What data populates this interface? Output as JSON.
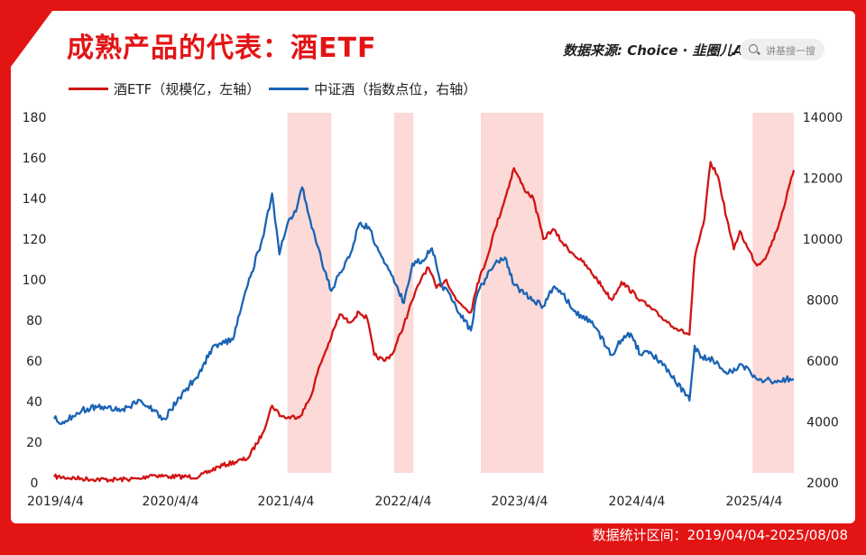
{
  "title": "成熟产品的代表：酒ETF",
  "source_label": "数据来源: Choice · 韭圈儿App",
  "search_placeholder": "讲基搜一搜",
  "footer": "数据统计区间：2019/04/04-2025/08/08",
  "colors": {
    "red": "#d11414",
    "blue": "#1a63b5",
    "shade": "#fbdad7"
  },
  "chart_data": {
    "type": "line",
    "x_ticks": [
      "2019/4/4",
      "2020/4/4",
      "2021/4/4",
      "2022/4/4",
      "2023/4/4",
      "2024/4/4",
      "2025/4/4"
    ],
    "y_left_ticks": [
      "0",
      "20",
      "40",
      "60",
      "80",
      "100",
      "120",
      "140",
      "160",
      "180"
    ],
    "y_right_ticks": [
      "2000",
      "4000",
      "6000",
      "8000",
      "10000",
      "12000",
      "14000"
    ],
    "ylim_left": [
      0,
      180
    ],
    "ylim_right": [
      2000,
      14000
    ],
    "shaded_periods": [
      [
        "2021-04-04",
        "2021-08-20"
      ],
      [
        "2022-03-04",
        "2022-05-04"
      ],
      [
        "2022-12-01",
        "2023-06-15"
      ],
      [
        "2025-04-01",
        "2025-08-08"
      ]
    ],
    "series": [
      {
        "name": "酒ETF（规模亿，左轴）",
        "axis": "left",
        "points": [
          [
            "2019-04-04",
            3
          ],
          [
            "2019-07-01",
            2
          ],
          [
            "2019-10-01",
            1.5
          ],
          [
            "2020-01-01",
            2
          ],
          [
            "2020-02-01",
            4
          ],
          [
            "2020-04-01",
            3
          ],
          [
            "2020-07-01",
            3
          ],
          [
            "2020-09-01",
            8
          ],
          [
            "2020-12-01",
            12
          ],
          [
            "2021-01-15",
            24
          ],
          [
            "2021-02-15",
            38
          ],
          [
            "2021-03-15",
            33
          ],
          [
            "2021-04-04",
            32
          ],
          [
            "2021-05-15",
            33
          ],
          [
            "2021-06-15",
            42
          ],
          [
            "2021-07-15",
            58
          ],
          [
            "2021-08-20",
            72
          ],
          [
            "2021-09-15",
            83
          ],
          [
            "2021-10-15",
            79
          ],
          [
            "2021-11-15",
            84
          ],
          [
            "2021-12-10",
            81
          ],
          [
            "2022-01-01",
            63
          ],
          [
            "2022-02-01",
            60
          ],
          [
            "2022-03-01",
            64
          ],
          [
            "2022-04-04",
            78
          ],
          [
            "2022-05-01",
            90
          ],
          [
            "2022-06-01",
            102
          ],
          [
            "2022-06-20",
            106
          ],
          [
            "2022-07-15",
            96
          ],
          [
            "2022-08-15",
            100
          ],
          [
            "2022-09-15",
            90
          ],
          [
            "2022-10-31",
            84
          ],
          [
            "2022-11-20",
            98
          ],
          [
            "2022-12-15",
            108
          ],
          [
            "2023-01-15",
            125
          ],
          [
            "2023-02-15",
            140
          ],
          [
            "2023-03-15",
            155
          ],
          [
            "2023-04-15",
            145
          ],
          [
            "2023-05-15",
            140
          ],
          [
            "2023-06-15",
            120
          ],
          [
            "2023-07-15",
            125
          ],
          [
            "2023-08-15",
            118
          ],
          [
            "2023-09-15",
            113
          ],
          [
            "2023-10-15",
            109
          ],
          [
            "2023-12-01",
            100
          ],
          [
            "2024-01-15",
            90
          ],
          [
            "2024-02-15",
            99
          ],
          [
            "2024-04-15",
            90
          ],
          [
            "2024-06-15",
            82
          ],
          [
            "2024-08-15",
            75
          ],
          [
            "2024-09-15",
            73
          ],
          [
            "2024-10-01",
            110
          ],
          [
            "2024-11-01",
            130
          ],
          [
            "2024-11-20",
            158
          ],
          [
            "2024-12-15",
            150
          ],
          [
            "2025-01-10",
            130
          ],
          [
            "2025-02-01",
            115
          ],
          [
            "2025-02-20",
            124
          ],
          [
            "2025-03-15",
            116
          ],
          [
            "2025-04-15",
            107
          ],
          [
            "2025-05-15",
            112
          ],
          [
            "2025-06-15",
            124
          ],
          [
            "2025-07-15",
            140
          ],
          [
            "2025-08-08",
            154
          ]
        ]
      },
      {
        "name": "中证酒（指数点位，右轴）",
        "axis": "right",
        "points": [
          [
            "2019-04-04",
            4100
          ],
          [
            "2019-05-01",
            4000
          ],
          [
            "2019-06-01",
            4200
          ],
          [
            "2019-07-01",
            4400
          ],
          [
            "2019-09-01",
            4500
          ],
          [
            "2019-11-01",
            4400
          ],
          [
            "2020-01-01",
            4700
          ],
          [
            "2020-03-15",
            4100
          ],
          [
            "2020-05-01",
            4800
          ],
          [
            "2020-07-01",
            5600
          ],
          [
            "2020-08-15",
            6500
          ],
          [
            "2020-10-15",
            6700
          ],
          [
            "2020-12-01",
            8500
          ],
          [
            "2021-01-15",
            10000
          ],
          [
            "2021-02-15",
            11500
          ],
          [
            "2021-03-10",
            9500
          ],
          [
            "2021-04-04",
            10500
          ],
          [
            "2021-05-01",
            10900
          ],
          [
            "2021-05-20",
            11700
          ],
          [
            "2021-06-15",
            10600
          ],
          [
            "2021-07-20",
            9300
          ],
          [
            "2021-08-20",
            8300
          ],
          [
            "2021-09-15",
            8900
          ],
          [
            "2021-10-15",
            9400
          ],
          [
            "2021-11-15",
            10500
          ],
          [
            "2021-12-15",
            10400
          ],
          [
            "2022-01-15",
            9600
          ],
          [
            "2022-02-15",
            9000
          ],
          [
            "2022-03-10",
            8500
          ],
          [
            "2022-04-04",
            7900
          ],
          [
            "2022-05-01",
            9200
          ],
          [
            "2022-06-01",
            9300
          ],
          [
            "2022-07-01",
            9700
          ],
          [
            "2022-08-01",
            8500
          ],
          [
            "2022-09-01",
            8000
          ],
          [
            "2022-10-31",
            7000
          ],
          [
            "2022-11-20",
            8200
          ],
          [
            "2022-12-15",
            8700
          ],
          [
            "2023-01-15",
            9200
          ],
          [
            "2023-02-15",
            9400
          ],
          [
            "2023-03-15",
            8500
          ],
          [
            "2023-04-15",
            8200
          ],
          [
            "2023-05-15",
            8000
          ],
          [
            "2023-06-15",
            7800
          ],
          [
            "2023-07-15",
            8400
          ],
          [
            "2023-08-15",
            8200
          ],
          [
            "2023-09-15",
            7700
          ],
          [
            "2023-10-15",
            7400
          ],
          [
            "2023-11-15",
            7300
          ],
          [
            "2024-01-15",
            6200
          ],
          [
            "2024-02-15",
            6700
          ],
          [
            "2024-03-15",
            6900
          ],
          [
            "2024-04-15",
            6200
          ],
          [
            "2024-05-15",
            6300
          ],
          [
            "2024-07-15",
            5600
          ],
          [
            "2024-09-15",
            4700
          ],
          [
            "2024-10-01",
            6500
          ],
          [
            "2024-10-20",
            6100
          ],
          [
            "2024-11-15",
            6100
          ],
          [
            "2024-12-15",
            5900
          ],
          [
            "2025-01-15",
            5600
          ],
          [
            "2025-02-15",
            5800
          ],
          [
            "2025-03-15",
            5800
          ],
          [
            "2025-04-15",
            5400
          ],
          [
            "2025-05-15",
            5400
          ],
          [
            "2025-06-15",
            5300
          ],
          [
            "2025-07-15",
            5400
          ],
          [
            "2025-08-08",
            5400
          ]
        ]
      }
    ]
  }
}
